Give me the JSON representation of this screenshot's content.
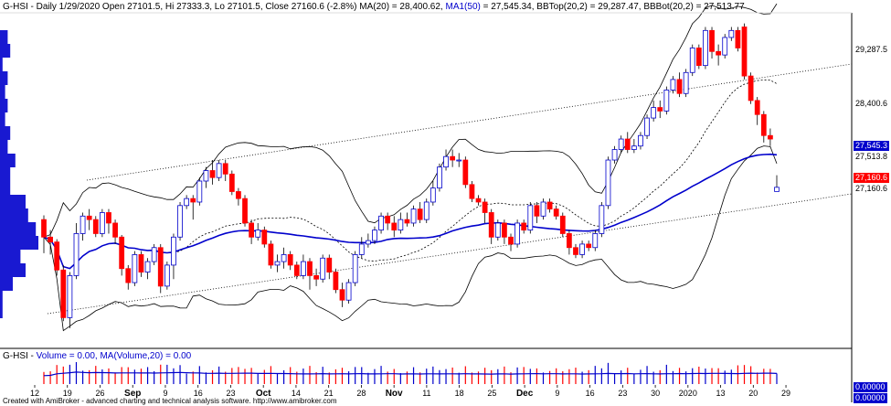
{
  "header": {
    "symbol_line": "G-HSI - Daily 1/29/2020 Open 27101.5, Hi 27333.3, Lo 27101.5, Close 27160.6 (-2.8%) MA(20) = 28,400.62,",
    "ma50_label": "MA1(50)",
    "bb_line": "= 27,545.34, BBTop(20,2) = 29,287.47, BBBot(20,2) = 27,513.77"
  },
  "volume_header": {
    "prefix": "G-HSI -",
    "volume_label": "Volume = 0.00,",
    "ma_label": "MA(Volume,20) = 0.00"
  },
  "footer": "Created with AmiBroker - advanced charting and technical analysis software. http://www.amibroker.com",
  "price_tags": [
    {
      "text": "29,287.5",
      "bg": "#ffffff",
      "fg": "#000000"
    },
    {
      "text": "28,400.6",
      "bg": "#ffffff",
      "fg": "#000000"
    },
    {
      "text": "27,545.3",
      "bg": "#0000cc",
      "fg": "#ffffff"
    },
    {
      "text": "27,513.8",
      "bg": "#ffffff",
      "fg": "#000000"
    },
    {
      "text": "27,160.6",
      "bg": "#ff0000",
      "fg": "#ffffff"
    },
    {
      "text": "27,160.6",
      "bg": "#ffffff",
      "fg": "#000000"
    }
  ],
  "volume_tags": [
    {
      "text": "0.00000",
      "bg": "#0000cc",
      "fg": "#ffffff"
    },
    {
      "text": "0.00000",
      "bg": "#0000cc",
      "fg": "#ffffff"
    }
  ],
  "colors": {
    "up": "#0000cc",
    "down": "#ff0000",
    "ma50": "#0000cc",
    "bands": "#000000",
    "background": "#ffffff"
  },
  "chart_data": {
    "type": "candlestick",
    "x_tick_labels": [
      "12",
      "19",
      "26",
      "Sep",
      "9",
      "16",
      "23",
      "Oct",
      "14",
      "21",
      "28",
      "Nov",
      "11",
      "18",
      "25",
      "Dec",
      "9",
      "16",
      "23",
      "30",
      "2020",
      "13",
      "20",
      "29"
    ],
    "ylim": [
      24900,
      29600
    ],
    "candles": [
      [
        26700,
        26450,
        26760,
        26220
      ],
      [
        26450,
        26380,
        26550,
        26200
      ],
      [
        26380,
        25980,
        26420,
        25900
      ],
      [
        25980,
        25300,
        26050,
        25250
      ],
      [
        25300,
        25900,
        25950,
        25150
      ],
      [
        25900,
        26500,
        26650,
        25850
      ],
      [
        26500,
        26750,
        26800,
        26400
      ],
      [
        26750,
        26700,
        26850,
        26550
      ],
      [
        26700,
        26500,
        26750,
        26450
      ],
      [
        26500,
        26800,
        26850,
        26450
      ],
      [
        26800,
        26650,
        26850,
        26500
      ],
      [
        26650,
        26450,
        26700,
        26350
      ],
      [
        26450,
        26000,
        26480,
        25900
      ],
      [
        26000,
        25800,
        26050,
        25700
      ],
      [
        25800,
        26200,
        26250,
        25750
      ],
      [
        26200,
        25950,
        26250,
        25880
      ],
      [
        25950,
        26100,
        26150,
        25850
      ],
      [
        26100,
        26300,
        26350,
        26050
      ],
      [
        26300,
        25750,
        26350,
        25650
      ],
      [
        25750,
        26050,
        26100,
        25700
      ],
      [
        26050,
        26450,
        26500,
        25850
      ],
      [
        26450,
        26900,
        26950,
        26400
      ],
      [
        26900,
        27000,
        27050,
        26850
      ],
      [
        27000,
        26950,
        27050,
        26700
      ],
      [
        26950,
        27250,
        27300,
        26900
      ],
      [
        27250,
        27400,
        27450,
        27150
      ],
      [
        27400,
        27300,
        27550,
        27200
      ],
      [
        27300,
        27500,
        27550,
        27250
      ],
      [
        27500,
        27350,
        27550,
        27250
      ],
      [
        27350,
        27100,
        27400,
        27050
      ],
      [
        27100,
        27000,
        27150,
        26900
      ],
      [
        27000,
        26650,
        27050,
        26600
      ],
      [
        26650,
        26450,
        26700,
        26350
      ],
      [
        26450,
        26550,
        26650,
        26400
      ],
      [
        26550,
        26350,
        26600,
        26300
      ],
      [
        26350,
        26050,
        26400,
        26000
      ],
      [
        26050,
        26100,
        26200,
        25950
      ],
      [
        26100,
        26200,
        26300,
        26000
      ],
      [
        26200,
        26050,
        26250,
        25980
      ],
      [
        26050,
        25900,
        26100,
        25850
      ],
      [
        25900,
        26100,
        26200,
        25850
      ],
      [
        26100,
        25900,
        26150,
        25700
      ],
      [
        25900,
        25850,
        26000,
        25750
      ],
      [
        25850,
        26150,
        26200,
        25800
      ],
      [
        26150,
        25950,
        26200,
        25850
      ],
      [
        25950,
        25700,
        26000,
        25650
      ],
      [
        25700,
        25550,
        25800,
        25450
      ],
      [
        25550,
        25800,
        25850,
        25500
      ],
      [
        25800,
        26200,
        26250,
        25750
      ],
      [
        26200,
        26350,
        26450,
        26150
      ],
      [
        26350,
        26400,
        26500,
        26300
      ],
      [
        26400,
        26550,
        26600,
        26350
      ],
      [
        26550,
        26750,
        26800,
        26500
      ],
      [
        26750,
        26650,
        26800,
        26550
      ],
      [
        26650,
        26550,
        26750,
        26450
      ],
      [
        26550,
        26700,
        26800,
        26500
      ],
      [
        26700,
        26650,
        26800,
        26600
      ],
      [
        26650,
        26850,
        26900,
        26600
      ],
      [
        26850,
        26700,
        26950,
        26650
      ],
      [
        26700,
        26950,
        27000,
        26650
      ],
      [
        26950,
        27150,
        27250,
        26900
      ],
      [
        27150,
        27450,
        27500,
        27100
      ],
      [
        27450,
        27600,
        27700,
        27400
      ],
      [
        27600,
        27550,
        27700,
        27450
      ],
      [
        27550,
        27550,
        27650,
        27450
      ],
      [
        27550,
        27200,
        27600,
        27150
      ],
      [
        27200,
        27000,
        27250,
        26950
      ],
      [
        27000,
        26950,
        27050,
        26900
      ],
      [
        26950,
        26800,
        27000,
        26650
      ],
      [
        26800,
        26450,
        26850,
        26350
      ],
      [
        26450,
        26650,
        26700,
        26400
      ],
      [
        26650,
        26450,
        26700,
        26350
      ],
      [
        26450,
        26350,
        26500,
        26250
      ],
      [
        26350,
        26650,
        26700,
        26300
      ],
      [
        26650,
        26550,
        26700,
        26500
      ],
      [
        26550,
        26900,
        26950,
        26500
      ],
      [
        26900,
        26750,
        26950,
        26650
      ],
      [
        26750,
        26950,
        27000,
        26700
      ],
      [
        26950,
        26850,
        27000,
        26800
      ],
      [
        26850,
        26750,
        26900,
        26700
      ],
      [
        26750,
        26500,
        26800,
        26450
      ],
      [
        26500,
        26300,
        26550,
        26200
      ],
      [
        26300,
        26200,
        26350,
        26150
      ],
      [
        26200,
        26350,
        26400,
        26150
      ],
      [
        26350,
        26300,
        26400,
        26250
      ],
      [
        26300,
        26500,
        26550,
        26250
      ],
      [
        26500,
        26900,
        26950,
        26450
      ],
      [
        26900,
        27550,
        27600,
        26850
      ],
      [
        27550,
        27700,
        27750,
        27500
      ],
      [
        27700,
        27850,
        27900,
        27650
      ],
      [
        27850,
        27700,
        27950,
        27650
      ],
      [
        27700,
        27750,
        27850,
        27650
      ],
      [
        27750,
        27900,
        27950,
        27700
      ],
      [
        27900,
        28150,
        28200,
        27850
      ],
      [
        28150,
        28300,
        28400,
        28100
      ],
      [
        28300,
        28250,
        28400,
        28150
      ],
      [
        28250,
        28550,
        28600,
        28200
      ],
      [
        28550,
        28700,
        28750,
        28500
      ],
      [
        28700,
        28500,
        28800,
        28450
      ],
      [
        28500,
        28800,
        28850,
        28450
      ],
      [
        28800,
        29150,
        29200,
        28750
      ],
      [
        29150,
        28900,
        29200,
        28850
      ],
      [
        28900,
        29400,
        29450,
        28850
      ],
      [
        29400,
        29100,
        29450,
        29000
      ],
      [
        29100,
        29050,
        29200,
        28900
      ],
      [
        29050,
        29300,
        29350,
        29000
      ],
      [
        29300,
        29400,
        29450,
        29250
      ],
      [
        29400,
        29150,
        29450,
        29100
      ],
      [
        29450,
        28750,
        29500,
        28700
      ],
      [
        28750,
        28400,
        28800,
        28350
      ],
      [
        28400,
        28200,
        28450,
        28050
      ],
      [
        28200,
        27900,
        28250,
        27800
      ],
      [
        27900,
        27850,
        28000,
        27750
      ],
      [
        27101.5,
        27160.6,
        27333.3,
        27101.5
      ]
    ],
    "volume": [],
    "legend_placement": "top-left"
  }
}
